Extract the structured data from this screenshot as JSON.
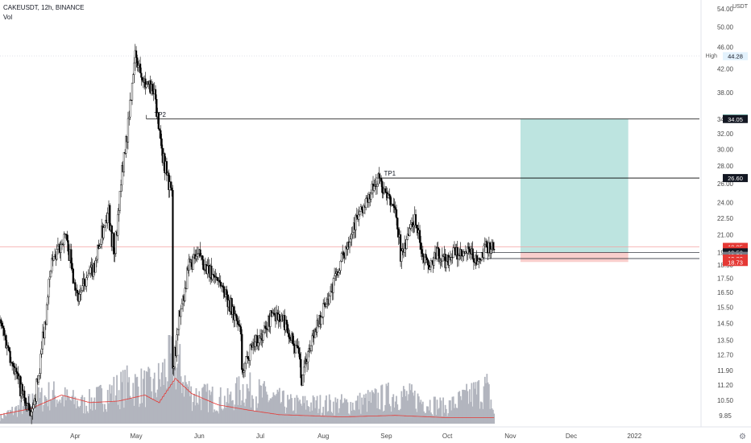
{
  "header": {
    "symbol_line": "CAKEUSDT, 12h, BINANCE",
    "indicator_label": "Vol"
  },
  "colors": {
    "candle_up": "#ffffff",
    "candle_down": "#000000",
    "candle_outline": "#000000",
    "volume_bar": "#b2b5be",
    "volume_ma": "#e53935",
    "profit_zone": "#b2dfdb",
    "loss_zone": "#f8c9c6",
    "tp_line": "#000000",
    "current_price_line": "#f5a3a3",
    "tag_target": "#089981",
    "tag_dark": "#131722",
    "tag_price": "#e53935",
    "axis_text": "#4a4a4a"
  },
  "chart_data": {
    "type": "candlestick",
    "y_axis": {
      "scale": "log",
      "unit": "USDT",
      "ticks": [
        "9.85",
        "10.50",
        "11.20",
        "11.90",
        "12.70",
        "13.50",
        "14.50",
        "15.50",
        "16.50",
        "17.50",
        "18.50",
        "19.50",
        "21.00",
        "22.50",
        "24.00",
        "26.00",
        "28.00",
        "30.00",
        "32.00",
        "34.00",
        "38.00",
        "42.00",
        "46.00",
        "50.00",
        "54.00"
      ],
      "range": [
        9.4,
        56
      ]
    },
    "x_axis": {
      "labels": [
        "Apr",
        "May",
        "Jun",
        "Jul",
        "Aug",
        "Sep",
        "Oct",
        "Nov",
        "Dec",
        "2022"
      ],
      "label_dates": [
        "2021-04-01",
        "2021-05-01",
        "2021-06-01",
        "2021-07-01",
        "2021-08-01",
        "2021-09-01",
        "2021-10-01",
        "2021-11-01",
        "2021-12-01",
        "2022-01-01"
      ],
      "range": [
        "2021-02-23",
        "2022-02-02"
      ]
    },
    "price_anchors": [
      [
        "2021-02-23",
        14.5
      ],
      [
        "2021-03-05",
        11.0
      ],
      [
        "2021-03-10",
        9.8
      ],
      [
        "2021-03-14",
        11.8
      ],
      [
        "2021-03-20",
        18.5
      ],
      [
        "2021-03-27",
        21.0
      ],
      [
        "2021-04-02",
        16.2
      ],
      [
        "2021-04-10",
        18.4
      ],
      [
        "2021-04-17",
        23.5
      ],
      [
        "2021-04-20",
        19.2
      ],
      [
        "2021-04-24",
        27.5
      ],
      [
        "2021-04-27",
        34.0
      ],
      [
        "2021-04-30",
        44.28
      ],
      [
        "2021-05-05",
        40.0
      ],
      [
        "2021-05-10",
        37.5
      ],
      [
        "2021-05-14",
        29.0
      ],
      [
        "2021-05-18",
        25.0
      ],
      [
        "2021-05-19",
        12.0
      ],
      [
        "2021-05-22",
        15.0
      ],
      [
        "2021-05-27",
        18.5
      ],
      [
        "2021-06-01",
        19.3
      ],
      [
        "2021-06-05",
        18.0
      ],
      [
        "2021-06-10",
        17.5
      ],
      [
        "2021-06-15",
        16.0
      ],
      [
        "2021-06-21",
        14.0
      ],
      [
        "2021-06-22",
        11.6
      ],
      [
        "2021-06-26",
        13.2
      ],
      [
        "2021-07-02",
        13.8
      ],
      [
        "2021-07-07",
        15.2
      ],
      [
        "2021-07-13",
        14.5
      ],
      [
        "2021-07-20",
        12.6
      ],
      [
        "2021-07-21",
        11.3
      ],
      [
        "2021-07-26",
        13.6
      ],
      [
        "2021-08-01",
        15.5
      ],
      [
        "2021-08-05",
        16.8
      ],
      [
        "2021-08-10",
        19.0
      ],
      [
        "2021-08-16",
        22.0
      ],
      [
        "2021-08-22",
        24.0
      ],
      [
        "2021-08-28",
        26.6
      ],
      [
        "2021-09-01",
        24.5
      ],
      [
        "2021-09-05",
        23.5
      ],
      [
        "2021-09-08",
        19.2
      ],
      [
        "2021-09-12",
        21.5
      ],
      [
        "2021-09-15",
        22.5
      ],
      [
        "2021-09-19",
        19.2
      ],
      [
        "2021-09-22",
        18.3
      ],
      [
        "2021-09-26",
        19.4
      ],
      [
        "2021-09-30",
        18.8
      ],
      [
        "2021-10-04",
        19.5
      ],
      [
        "2021-10-08",
        19.1
      ],
      [
        "2021-10-12",
        19.6
      ],
      [
        "2021-10-16",
        18.5
      ],
      [
        "2021-10-20",
        20.0
      ],
      [
        "2021-10-24",
        19.95
      ]
    ],
    "volume_anchors": [
      [
        "2021-02-23",
        0.1
      ],
      [
        "2021-03-08",
        0.3
      ],
      [
        "2021-03-20",
        0.45
      ],
      [
        "2021-04-05",
        0.3
      ],
      [
        "2021-04-27",
        0.6
      ],
      [
        "2021-05-10",
        0.55
      ],
      [
        "2021-05-19",
        1.0
      ],
      [
        "2021-05-28",
        0.45
      ],
      [
        "2021-06-15",
        0.35
      ],
      [
        "2021-06-22",
        0.55
      ],
      [
        "2021-07-15",
        0.3
      ],
      [
        "2021-08-15",
        0.3
      ],
      [
        "2021-09-07",
        0.45
      ],
      [
        "2021-09-30",
        0.25
      ],
      [
        "2021-10-20",
        0.55
      ],
      [
        "2021-10-24",
        0.15
      ]
    ],
    "volume_ma_anchors": [
      [
        "2021-02-23",
        0.12
      ],
      [
        "2021-03-10",
        0.2
      ],
      [
        "2021-03-25",
        0.38
      ],
      [
        "2021-04-08",
        0.28
      ],
      [
        "2021-04-22",
        0.3
      ],
      [
        "2021-05-05",
        0.38
      ],
      [
        "2021-05-12",
        0.28
      ],
      [
        "2021-05-20",
        0.6
      ],
      [
        "2021-05-28",
        0.4
      ],
      [
        "2021-06-10",
        0.25
      ],
      [
        "2021-06-25",
        0.18
      ],
      [
        "2021-07-10",
        0.12
      ],
      [
        "2021-08-10",
        0.09
      ],
      [
        "2021-09-05",
        0.11
      ],
      [
        "2021-10-01",
        0.08
      ],
      [
        "2021-10-24",
        0.08
      ]
    ],
    "levels": [
      {
        "label": "TP2",
        "price": 34.05,
        "start": "2021-05-06"
      },
      {
        "label": "TP1",
        "price": 26.6,
        "start": "2021-08-27"
      }
    ],
    "long_position": {
      "start": "2021-11-06",
      "end": "2021-12-29",
      "entry": 19.5,
      "target": 34.09,
      "stop": 18.73
    },
    "entry_lines": [
      {
        "price": 19.5,
        "start": "2021-10-13"
      },
      {
        "price": 19.0,
        "start": "2021-10-13"
      }
    ],
    "current_price": 19.95,
    "high": {
      "label": "High",
      "price": 44.28
    },
    "price_tags": [
      {
        "text": "44.28",
        "price": 44.28,
        "style": "high"
      },
      {
        "text": "34.09",
        "price": 34.09,
        "style": "target"
      },
      {
        "text": "34.05",
        "price": 34.05,
        "style": "dark"
      },
      {
        "text": "26.60",
        "price": 26.6,
        "style": "dark"
      },
      {
        "text": "19.95",
        "price": 19.95,
        "style": "price"
      },
      {
        "text": "07:21:02",
        "price": 19.65,
        "style": "price"
      },
      {
        "text": "19.50",
        "price": 19.5,
        "style": "dark"
      },
      {
        "text": "19.50",
        "price": 19.22,
        "style": "gray"
      },
      {
        "text": "19.00",
        "price": 19.0,
        "style": "price"
      },
      {
        "text": "18.73",
        "price": 18.73,
        "style": "price"
      }
    ]
  }
}
